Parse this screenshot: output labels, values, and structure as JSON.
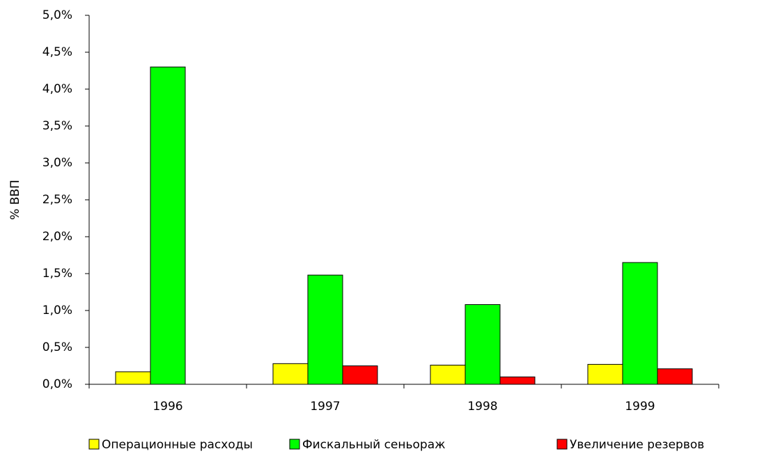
{
  "chart_data": {
    "type": "bar",
    "ylabel": "% ВВП",
    "categories": [
      "1996",
      "1997",
      "1998",
      "1999"
    ],
    "series": [
      {
        "name": "Операционные расходы",
        "color": "#ffff00",
        "values": [
          0.17,
          0.28,
          0.26,
          0.27
        ]
      },
      {
        "name": "Фискальный сеньораж",
        "color": "#00ff00",
        "values": [
          4.3,
          1.48,
          1.08,
          1.65
        ]
      },
      {
        "name": "Увеличение резервов",
        "color": "#ff0000",
        "values": [
          0,
          0.25,
          0.1,
          0.21
        ]
      }
    ],
    "ylim": [
      0,
      5
    ],
    "yticks": [
      {
        "value": 0,
        "label": "0,0%"
      },
      {
        "value": 0.5,
        "label": "0,5%"
      },
      {
        "value": 1,
        "label": "1,0%"
      },
      {
        "value": 1.5,
        "label": "1,5%"
      },
      {
        "value": 2,
        "label": "2,0%"
      },
      {
        "value": 2.5,
        "label": "2,5%"
      },
      {
        "value": 3,
        "label": "3,0%"
      },
      {
        "value": 3.5,
        "label": "3,5%"
      },
      {
        "value": 4,
        "label": "4,0%"
      },
      {
        "value": 4.5,
        "label": "4,5%"
      },
      {
        "value": 5,
        "label": "5,0%"
      }
    ],
    "grid": false,
    "legend": "bottom"
  }
}
